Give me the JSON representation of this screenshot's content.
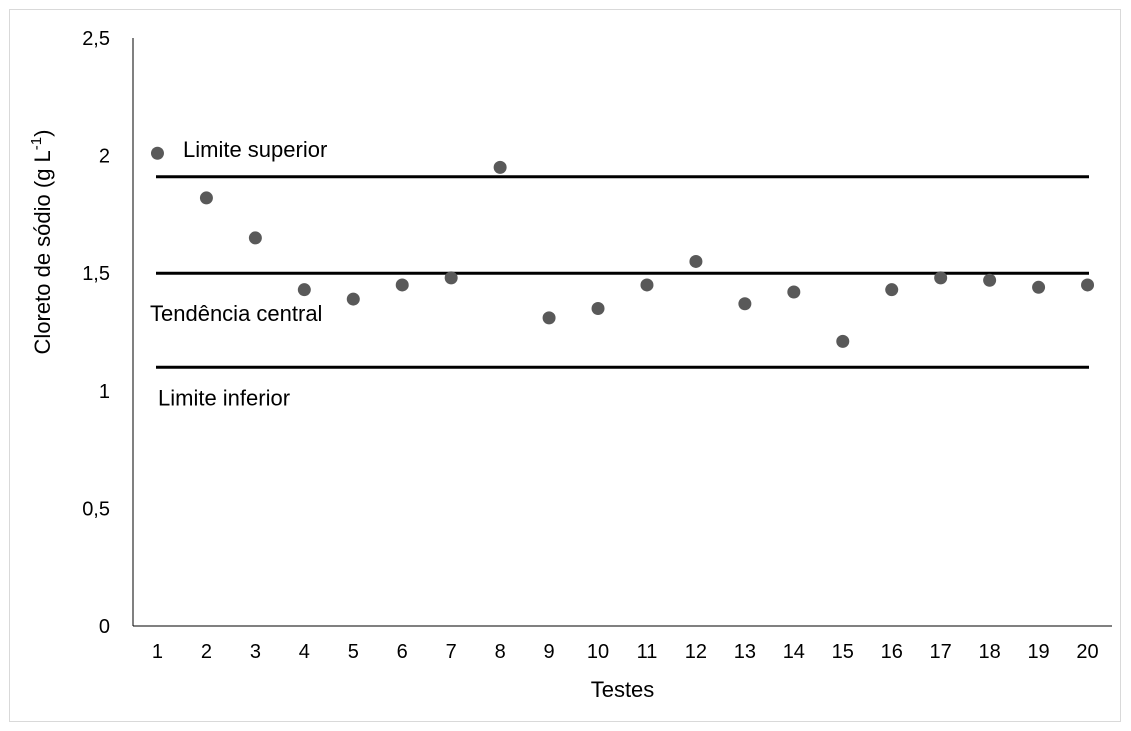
{
  "chart_data": {
    "type": "scatter",
    "title": "",
    "xlabel": "Testes",
    "ylabel_main": "Cloreto de sódio (g L",
    "ylabel_superscript": "-1",
    "ylabel_close": ")",
    "x": [
      1,
      2,
      3,
      4,
      5,
      6,
      7,
      8,
      9,
      10,
      11,
      12,
      13,
      14,
      15,
      16,
      17,
      18,
      19,
      20
    ],
    "x_tick_labels": [
      "1",
      "2",
      "3",
      "4",
      "5",
      "6",
      "7",
      "8",
      "9",
      "10",
      "11",
      "12",
      "13",
      "14",
      "15",
      "16",
      "17",
      "18",
      "19",
      "20"
    ],
    "y_ticks": [
      0,
      0.5,
      1,
      1.5,
      2,
      2.5
    ],
    "y_tick_labels": [
      "0",
      "0,5",
      "1",
      "1,5",
      "2",
      "2,5"
    ],
    "ylim": [
      0,
      2.5
    ],
    "series": [
      {
        "values": [
          2.01,
          1.82,
          1.65,
          1.43,
          1.39,
          1.45,
          1.48,
          1.95,
          1.31,
          1.35,
          1.45,
          1.55,
          1.37,
          1.42,
          1.21,
          1.43,
          1.48,
          1.47,
          1.44,
          1.45
        ],
        "color": "#595959"
      }
    ],
    "reference_lines": [
      {
        "label": "Limite superior",
        "value": 1.91
      },
      {
        "label": "Tendência central",
        "value": 1.5
      },
      {
        "label": "Limite inferior",
        "value": 1.1
      }
    ],
    "line_color": "#000000",
    "axis_color": "#000000",
    "grid": false,
    "legend": "none"
  }
}
